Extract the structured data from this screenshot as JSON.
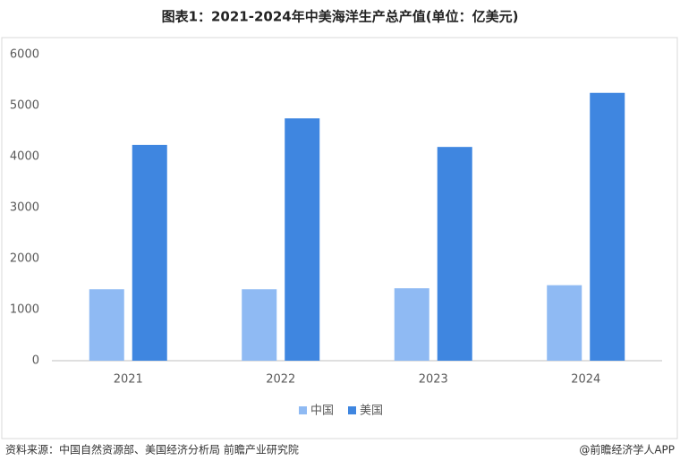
{
  "chart_data": {
    "type": "bar",
    "title": "图表1：2021-2024年中美海洋生产总产值(单位：亿美元)",
    "categories": [
      "2021",
      "2022",
      "2023",
      "2024"
    ],
    "series": [
      {
        "name": "中国",
        "color": "#8fbaf3",
        "values": [
          1400,
          1400,
          1420,
          1480
        ]
      },
      {
        "name": "美国",
        "color": "#3f86e0",
        "values": [
          4230,
          4750,
          4190,
          5250
        ]
      }
    ],
    "ylim": [
      0,
      6000
    ],
    "yticks": [
      0,
      1000,
      2000,
      3000,
      4000,
      5000,
      6000
    ],
    "grid": false,
    "legend": "bottom"
  },
  "footer": {
    "source": "资料来源：中国自然资源部、美国经济分析局 前瞻产业研究院",
    "brand": "@前瞻经济学人APP"
  }
}
